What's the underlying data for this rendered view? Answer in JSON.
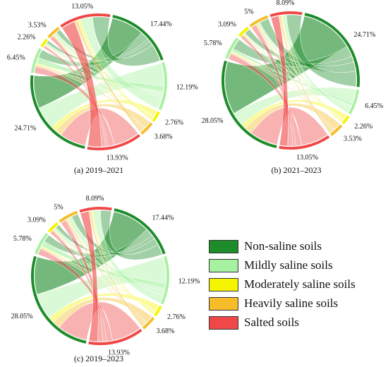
{
  "chart_data": [
    {
      "type": "chord",
      "caption": "(a) 2019–2021",
      "categories": [
        "Non-saline soils",
        "Mildly saline soils",
        "Moderately saline soils",
        "Heavily saline soils",
        "Salted soils"
      ],
      "sectors": [
        {
          "class": "Non-saline soils",
          "side": "out",
          "value": 17.44,
          "label": "17.44%"
        },
        {
          "class": "Mildly saline soils",
          "side": "out",
          "value": 12.19,
          "label": "12.19%"
        },
        {
          "class": "Moderately saline soils",
          "side": "out",
          "value": 2.76,
          "label": "2.76%"
        },
        {
          "class": "Heavily saline soils",
          "side": "out",
          "value": 3.68,
          "label": "3.68%"
        },
        {
          "class": "Salted soils",
          "side": "out",
          "value": 13.93,
          "label": "13.93%"
        },
        {
          "class": "Non-saline soils",
          "side": "in",
          "value": 24.71,
          "label": "24.71%"
        },
        {
          "class": "Mildly saline soils",
          "side": "in",
          "value": 6.45,
          "label": "6.45%"
        },
        {
          "class": "Moderately saline soils",
          "side": "in",
          "value": 2.26,
          "label": "2.26%"
        },
        {
          "class": "Heavily saline soils",
          "side": "in",
          "value": 3.53,
          "label": "3.53%"
        },
        {
          "class": "Salted soils",
          "side": "in",
          "value": 13.05,
          "label": "13.05%"
        }
      ]
    },
    {
      "type": "chord",
      "caption": "(b) 2021–2023",
      "categories": [
        "Non-saline soils",
        "Mildly saline soils",
        "Moderately saline soils",
        "Heavily saline soils",
        "Salted soils"
      ],
      "sectors": [
        {
          "class": "Non-saline soils",
          "side": "out",
          "value": 24.71,
          "label": "24.71%"
        },
        {
          "class": "Mildly saline soils",
          "side": "out",
          "value": 6.45,
          "label": "6.45%"
        },
        {
          "class": "Moderately saline soils",
          "side": "out",
          "value": 2.26,
          "label": "2.26%"
        },
        {
          "class": "Heavily saline soils",
          "side": "out",
          "value": 3.53,
          "label": "3.53%"
        },
        {
          "class": "Salted soils",
          "side": "out",
          "value": 13.05,
          "label": "13.05%"
        },
        {
          "class": "Non-saline soils",
          "side": "in",
          "value": 28.05,
          "label": "28.05%"
        },
        {
          "class": "Mildly saline soils",
          "side": "in",
          "value": 5.78,
          "label": "5.78%"
        },
        {
          "class": "Moderately saline soils",
          "side": "in",
          "value": 3.09,
          "label": "3.09%"
        },
        {
          "class": "Heavily saline soils",
          "side": "in",
          "value": 5,
          "label": "5%"
        },
        {
          "class": "Salted soils",
          "side": "in",
          "value": 8.09,
          "label": "8.09%"
        }
      ]
    },
    {
      "type": "chord",
      "caption": "(c) 2019–2023",
      "categories": [
        "Non-saline soils",
        "Mildly saline soils",
        "Moderately saline soils",
        "Heavily saline soils",
        "Salted soils"
      ],
      "sectors": [
        {
          "class": "Non-saline soils",
          "side": "out",
          "value": 17.44,
          "label": "17.44%"
        },
        {
          "class": "Mildly saline soils",
          "side": "out",
          "value": 12.19,
          "label": "12.19%"
        },
        {
          "class": "Moderately saline soils",
          "side": "out",
          "value": 2.76,
          "label": "2.76%"
        },
        {
          "class": "Heavily saline soils",
          "side": "out",
          "value": 3.68,
          "label": "3.68%"
        },
        {
          "class": "Salted soils",
          "side": "out",
          "value": 13.93,
          "label": "13.93%"
        },
        {
          "class": "Non-saline soils",
          "side": "in",
          "value": 28.05,
          "label": "28.05%"
        },
        {
          "class": "Mildly saline soils",
          "side": "in",
          "value": 5.78,
          "label": "5.78%"
        },
        {
          "class": "Moderately saline soils",
          "side": "in",
          "value": 3.09,
          "label": "3.09%"
        },
        {
          "class": "Heavily saline soils",
          "side": "in",
          "value": 5,
          "label": "5%"
        },
        {
          "class": "Salted soils",
          "side": "in",
          "value": 8.09,
          "label": "8.09%"
        }
      ]
    }
  ],
  "legend": {
    "placement": "bottom-right",
    "items": [
      {
        "label": "Non-saline soils",
        "color": "#1e8c2a"
      },
      {
        "label": "Mildly saline soils",
        "color": "#a6f2a0"
      },
      {
        "label": "Moderately saline soils",
        "color": "#f5f500"
      },
      {
        "label": "Heavily saline soils",
        "color": "#f6bd2a"
      },
      {
        "label": "Salted soils",
        "color": "#f04848"
      }
    ]
  }
}
